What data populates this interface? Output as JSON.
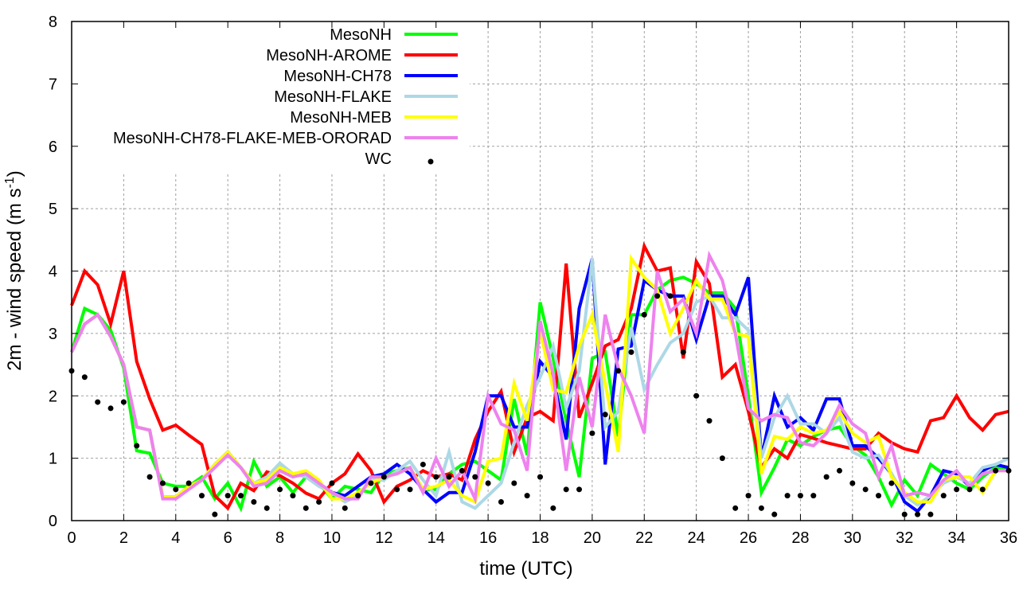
{
  "chart_data": {
    "type": "line",
    "xlabel": "time (UTC)",
    "ylabel": {
      "main": "2m - wind speed  (m s",
      "sup": "-1",
      "end": ")"
    },
    "xlim": [
      0,
      36
    ],
    "ylim": [
      0,
      8
    ],
    "xticks": [
      "0",
      "2",
      "4",
      "6",
      "8",
      "10",
      "12",
      "14",
      "16",
      "18",
      "20",
      "22",
      "24",
      "26",
      "28",
      "30",
      "32",
      "34",
      "36"
    ],
    "yticks": [
      "0",
      "1",
      "2",
      "3",
      "4",
      "5",
      "6",
      "7",
      "8"
    ],
    "grid": true,
    "legend_position": "top-left",
    "x_step": 0.5,
    "series": [
      {
        "name": "MesoNH",
        "color": "#00ff00",
        "style": "line",
        "values": [
          2.7,
          3.4,
          3.3,
          3.05,
          2.45,
          1.12,
          1.08,
          0.6,
          0.55,
          0.55,
          0.7,
          0.35,
          0.6,
          0.2,
          0.95,
          0.55,
          0.7,
          0.45,
          0.7,
          0.6,
          0.35,
          0.55,
          0.5,
          0.45,
          0.75,
          0.8,
          0.85,
          0.5,
          0.5,
          0.75,
          0.9,
          0.95,
          0.8,
          0.65,
          1.95,
          1.05,
          3.5,
          2.6,
          1.6,
          0.7,
          2.6,
          2.7,
          1.35,
          3.3,
          3.3,
          3.7,
          3.85,
          3.9,
          3.8,
          3.65,
          3.65,
          3.4,
          2.0,
          0.45,
          0.85,
          1.3,
          1.2,
          1.35,
          1.45,
          1.5,
          1.2,
          1.05,
          0.7,
          0.25,
          0.65,
          0.4,
          0.9,
          0.75,
          0.6,
          0.5,
          0.7,
          0.85,
          0.8
        ]
      },
      {
        "name": "MesoNH-AROME",
        "color": "#ff0000",
        "style": "line",
        "values": [
          3.45,
          4.0,
          3.78,
          3.15,
          4.0,
          2.55,
          1.95,
          1.45,
          1.53,
          1.37,
          1.22,
          0.4,
          0.2,
          0.6,
          0.48,
          0.78,
          0.72,
          0.6,
          0.44,
          0.35,
          0.6,
          0.75,
          1.07,
          0.8,
          0.3,
          0.55,
          0.65,
          0.8,
          0.7,
          0.75,
          0.65,
          1.3,
          1.75,
          2.07,
          1.1,
          1.65,
          1.75,
          1.6,
          4.12,
          1.65,
          2.2,
          2.8,
          2.9,
          3.4,
          4.4,
          4.0,
          4.05,
          2.6,
          4.15,
          3.8,
          2.3,
          2.5,
          1.75,
          0.85,
          1.15,
          1.0,
          1.38,
          1.32,
          1.25,
          1.2,
          1.15,
          1.15,
          1.4,
          1.25,
          1.15,
          1.1,
          1.6,
          1.65,
          2.0,
          1.65,
          1.45,
          1.7,
          1.75
        ]
      },
      {
        "name": "MesoNH-CH78",
        "color": "#0000ff",
        "style": "line",
        "values": [
          2.7,
          3.15,
          3.3,
          2.95,
          2.5,
          1.5,
          1.45,
          0.38,
          0.38,
          0.55,
          0.65,
          0.9,
          1.1,
          0.85,
          0.6,
          0.65,
          0.85,
          0.75,
          0.75,
          0.6,
          0.45,
          0.4,
          0.55,
          0.7,
          0.75,
          0.9,
          0.75,
          0.5,
          0.3,
          0.45,
          0.45,
          1.1,
          2.0,
          2.0,
          1.5,
          1.5,
          2.55,
          2.3,
          1.3,
          3.4,
          4.2,
          0.9,
          2.75,
          2.8,
          3.85,
          3.7,
          3.6,
          3.6,
          2.9,
          3.6,
          3.6,
          3.3,
          3.9,
          1.0,
          2.0,
          1.5,
          1.65,
          1.45,
          1.95,
          1.95,
          1.2,
          1.2,
          1.0,
          0.75,
          0.3,
          0.15,
          0.4,
          0.8,
          0.75,
          0.55,
          0.8,
          0.9,
          0.85
        ]
      },
      {
        "name": "MesoNH-FLAKE",
        "color": "#add8e6",
        "style": "line",
        "values": [
          2.7,
          3.15,
          3.3,
          2.95,
          2.5,
          1.5,
          1.45,
          0.38,
          0.38,
          0.55,
          0.65,
          0.9,
          1.1,
          0.85,
          0.6,
          0.7,
          0.92,
          0.75,
          0.7,
          0.55,
          0.45,
          0.3,
          0.4,
          0.65,
          0.65,
          0.8,
          0.95,
          0.65,
          0.4,
          1.1,
          0.3,
          0.2,
          0.4,
          0.6,
          1.25,
          1.85,
          2.3,
          2.8,
          1.8,
          2.4,
          4.2,
          1.5,
          1.75,
          3.1,
          2.1,
          2.5,
          2.85,
          3.0,
          3.5,
          3.6,
          3.25,
          3.25,
          3.05,
          1.0,
          1.65,
          2.0,
          1.55,
          1.55,
          1.4,
          1.65,
          1.1,
          1.0,
          1.05,
          0.75,
          0.4,
          0.25,
          0.4,
          0.6,
          0.7,
          0.6,
          0.85,
          0.9,
          1.0
        ]
      },
      {
        "name": "MesoNH-MEB",
        "color": "#ffff00",
        "style": "line",
        "values": [
          2.7,
          3.15,
          3.3,
          2.95,
          2.5,
          1.5,
          1.45,
          0.38,
          0.38,
          0.55,
          0.65,
          0.9,
          1.1,
          0.85,
          0.6,
          0.65,
          0.85,
          0.75,
          0.8,
          0.65,
          0.35,
          0.35,
          0.45,
          0.6,
          0.7,
          0.75,
          0.85,
          0.5,
          0.55,
          0.65,
          0.4,
          0.3,
          0.95,
          1.0,
          2.2,
          1.6,
          3.05,
          2.1,
          2.05,
          2.8,
          3.3,
          2.2,
          1.1,
          4.2,
          3.9,
          3.7,
          3.0,
          3.4,
          3.85,
          3.55,
          3.55,
          3.0,
          2.95,
          0.75,
          1.35,
          1.3,
          1.5,
          1.4,
          1.45,
          1.75,
          1.4,
          1.25,
          1.35,
          0.7,
          0.45,
          0.3,
          0.3,
          0.65,
          0.7,
          0.7,
          0.45,
          0.8,
          0.8
        ]
      },
      {
        "name": "MesoNH-CH78-FLAKE-MEB-ORORAD",
        "color": "#ee82ee",
        "style": "line",
        "values": [
          2.7,
          3.15,
          3.3,
          2.95,
          2.5,
          1.5,
          1.45,
          0.35,
          0.35,
          0.5,
          0.65,
          0.85,
          1.05,
          0.85,
          0.55,
          0.6,
          0.8,
          0.7,
          0.75,
          0.6,
          0.45,
          0.35,
          0.35,
          0.7,
          0.7,
          0.75,
          0.85,
          0.45,
          1.0,
          0.55,
          0.8,
          0.35,
          2.0,
          1.55,
          1.45,
          0.8,
          3.2,
          2.35,
          0.8,
          2.3,
          1.5,
          3.3,
          2.45,
          2.0,
          1.4,
          4.0,
          3.35,
          3.55,
          3.0,
          4.25,
          3.85,
          3.0,
          1.8,
          1.6,
          1.7,
          1.65,
          1.25,
          1.2,
          1.4,
          1.85,
          1.55,
          1.4,
          0.7,
          1.2,
          0.4,
          0.45,
          0.4,
          0.65,
          0.8,
          0.55,
          0.75,
          0.8,
          0.8
        ]
      },
      {
        "name": "WC",
        "color": "#000000",
        "style": "points",
        "values": [
          2.4,
          2.3,
          1.9,
          1.8,
          1.9,
          1.2,
          0.7,
          0.6,
          0.5,
          0.6,
          0.4,
          0.1,
          0.4,
          0.4,
          0.3,
          0.2,
          0.5,
          0.4,
          0.2,
          0.3,
          0.6,
          0.2,
          0.4,
          0.6,
          0.7,
          0.5,
          0.5,
          0.9,
          0.7,
          0.7,
          0.8,
          0.7,
          0.6,
          0.3,
          0.6,
          0.4,
          0.7,
          0.2,
          0.5,
          0.5,
          1.4,
          1.7,
          2.4,
          2.7,
          3.3,
          3.6,
          3.6,
          2.7,
          2.0,
          1.6,
          1.0,
          0.2,
          0.4,
          0.2,
          0.1,
          0.4,
          0.4,
          0.4,
          0.7,
          0.8,
          0.6,
          0.5,
          0.4,
          0.6,
          0.1,
          0.1,
          0.1,
          0.4,
          0.5,
          0.5,
          0.5,
          0.8,
          0.8
        ]
      }
    ]
  }
}
